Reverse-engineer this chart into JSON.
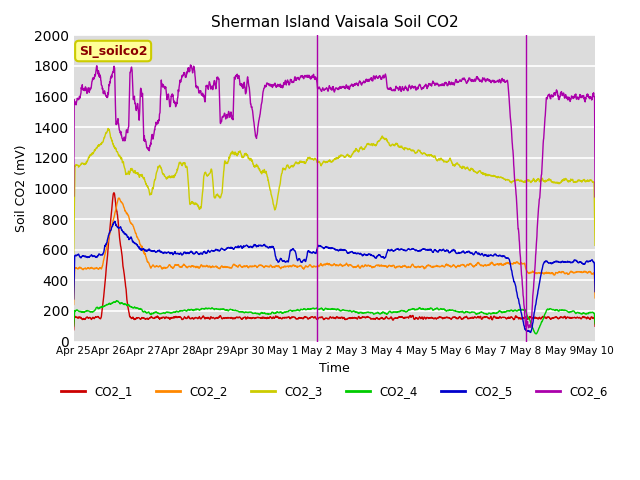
{
  "title": "Sherman Island Vaisala Soil CO2",
  "xlabel": "Time",
  "ylabel": "Soil CO2 (mV)",
  "ylim": [
    0,
    2000
  ],
  "background_color": "#dcdcdc",
  "plot_bg_color": "#dcdcdc",
  "grid_color": "#ffffff",
  "colors": {
    "CO2_1": "#cc0000",
    "CO2_2": "#ff8800",
    "CO2_3": "#cccc00",
    "CO2_4": "#00cc00",
    "CO2_5": "#0000cc",
    "CO2_6": "#aa00aa"
  },
  "legend_label": "SI_soilco2",
  "legend_text_color": "#8b0000",
  "legend_bg": "#ffff99",
  "legend_border": "#cccc00",
  "xtick_labels": [
    "Apr 25",
    "Apr 26",
    "Apr 27",
    "Apr 28",
    "Apr 29",
    "Apr 30",
    "May 1",
    "May 2",
    "May 3",
    "May 4",
    "May 5",
    "May 6",
    "May 7",
    "May 8",
    "May 9",
    "May 10"
  ],
  "xtick_positions": [
    0,
    1,
    2,
    3,
    4,
    5,
    6,
    7,
    8,
    9,
    10,
    11,
    12,
    13,
    14,
    15
  ],
  "ytick_positions": [
    0,
    200,
    400,
    600,
    800,
    1000,
    1200,
    1400,
    1600,
    1800,
    2000
  ],
  "vline1": 7.0,
  "vline2": 13.0
}
